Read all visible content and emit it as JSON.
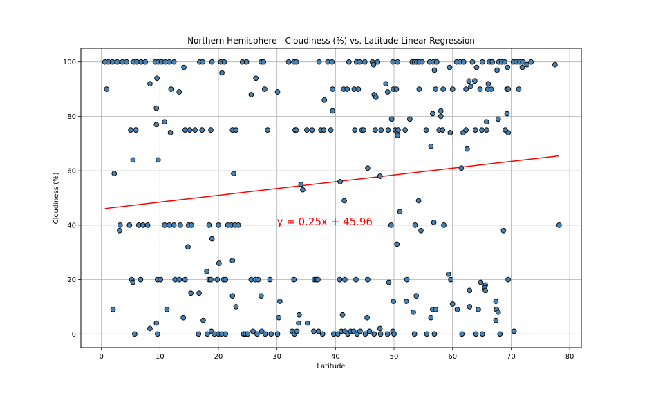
{
  "chart_data": {
    "type": "scatter",
    "title": "Northern Hemisphere - Cloudiness (%) vs. Latitude Linear Regression",
    "xlabel": "Latitude",
    "ylabel": "Cloudiness (%)",
    "xlim": [
      -3.5,
      82
    ],
    "ylim": [
      -5,
      105
    ],
    "xticks": [
      0,
      10,
      20,
      30,
      40,
      50,
      60,
      70,
      80
    ],
    "yticks": [
      0,
      20,
      40,
      60,
      80,
      100
    ],
    "grid": true,
    "marker_color": "#4682b4",
    "marker_edge": "#000000",
    "regression": {
      "slope": 0.25,
      "intercept": 45.96,
      "x_range": [
        0.6,
        78.2
      ],
      "color": "#ff0000",
      "equation": "y = 0.25x + 45.96",
      "label_x": 30,
      "label_y": 40
    },
    "points": [
      [
        0.6,
        100
      ],
      [
        1.2,
        100
      ],
      [
        1.9,
        100
      ],
      [
        2.7,
        100
      ],
      [
        3.6,
        100
      ],
      [
        4.3,
        100
      ],
      [
        5.5,
        100
      ],
      [
        6.1,
        100
      ],
      [
        6.8,
        100
      ],
      [
        7.5,
        100
      ],
      [
        9.2,
        100
      ],
      [
        9.7,
        100
      ],
      [
        10.3,
        100
      ],
      [
        10.9,
        100
      ],
      [
        11.6,
        100
      ],
      [
        12.4,
        100
      ],
      [
        16.8,
        100
      ],
      [
        17.3,
        100
      ],
      [
        18.9,
        100
      ],
      [
        20.4,
        100
      ],
      [
        21.0,
        100
      ],
      [
        24.1,
        100
      ],
      [
        24.8,
        100
      ],
      [
        27.3,
        100
      ],
      [
        27.7,
        100
      ],
      [
        32.0,
        100
      ],
      [
        32.9,
        100
      ],
      [
        33.3,
        100
      ],
      [
        37.2,
        100
      ],
      [
        38.7,
        100
      ],
      [
        39.4,
        100
      ],
      [
        42.3,
        100
      ],
      [
        43.6,
        100
      ],
      [
        44.1,
        100
      ],
      [
        45.0,
        100
      ],
      [
        46.3,
        100
      ],
      [
        47.2,
        100
      ],
      [
        49.8,
        100
      ],
      [
        50.6,
        100
      ],
      [
        53.1,
        100
      ],
      [
        53.5,
        100
      ],
      [
        53.9,
        100
      ],
      [
        54.3,
        100
      ],
      [
        54.8,
        100
      ],
      [
        56.1,
        100
      ],
      [
        56.7,
        100
      ],
      [
        57.3,
        100
      ],
      [
        60.7,
        100
      ],
      [
        61.3,
        100
      ],
      [
        61.9,
        100
      ],
      [
        63.4,
        100
      ],
      [
        65.1,
        100
      ],
      [
        66.3,
        100
      ],
      [
        66.8,
        100
      ],
      [
        67.9,
        100
      ],
      [
        68.4,
        100
      ],
      [
        68.9,
        100
      ],
      [
        70.4,
        100
      ],
      [
        70.9,
        100
      ],
      [
        71.5,
        100
      ],
      [
        72.0,
        100
      ],
      [
        73.4,
        100
      ],
      [
        72.7,
        99
      ],
      [
        77.5,
        99
      ],
      [
        46.5,
        99
      ],
      [
        59.5,
        98
      ],
      [
        64.1,
        98
      ],
      [
        71.9,
        98
      ],
      [
        69.4,
        98
      ],
      [
        14.1,
        98
      ],
      [
        20.6,
        96
      ],
      [
        56.9,
        97
      ],
      [
        67.6,
        97
      ],
      [
        26.4,
        94
      ],
      [
        9.5,
        94
      ],
      [
        62.8,
        93
      ],
      [
        63.8,
        93
      ],
      [
        8.3,
        92
      ],
      [
        48.6,
        92
      ],
      [
        66.1,
        92
      ],
      [
        0.9,
        90
      ],
      [
        11.9,
        90
      ],
      [
        13.3,
        89
      ],
      [
        27.9,
        90
      ],
      [
        30.1,
        89
      ],
      [
        39.5,
        90
      ],
      [
        41.4,
        90
      ],
      [
        42.0,
        90
      ],
      [
        43.2,
        90
      ],
      [
        43.9,
        90
      ],
      [
        49.9,
        90
      ],
      [
        50.4,
        90
      ],
      [
        54.3,
        90
      ],
      [
        57.1,
        90
      ],
      [
        58.4,
        90
      ],
      [
        60.0,
        90
      ],
      [
        62.3,
        90
      ],
      [
        63.1,
        91
      ],
      [
        64.7,
        90
      ],
      [
        66.0,
        90
      ],
      [
        66.6,
        90
      ],
      [
        69.3,
        90
      ],
      [
        69.5,
        90
      ],
      [
        71.3,
        90
      ],
      [
        25.6,
        88
      ],
      [
        46.6,
        88
      ],
      [
        46.9,
        87
      ],
      [
        48.9,
        89
      ],
      [
        38.1,
        86
      ],
      [
        39.5,
        82
      ],
      [
        58.0,
        82
      ],
      [
        58.0,
        80
      ],
      [
        9.4,
        83
      ],
      [
        52.7,
        79
      ],
      [
        56.6,
        81
      ],
      [
        69.3,
        81
      ],
      [
        67.8,
        79
      ],
      [
        65.8,
        78
      ],
      [
        10.8,
        78
      ],
      [
        9.4,
        77
      ],
      [
        5.0,
        75
      ],
      [
        5.9,
        75
      ],
      [
        11.8,
        74
      ],
      [
        14.3,
        75
      ],
      [
        15.1,
        75
      ],
      [
        16.0,
        75
      ],
      [
        17.2,
        75
      ],
      [
        18.7,
        75
      ],
      [
        22.4,
        75
      ],
      [
        23.0,
        75
      ],
      [
        28.4,
        75
      ],
      [
        33.1,
        75
      ],
      [
        33.3,
        75
      ],
      [
        35.1,
        75
      ],
      [
        36.0,
        75
      ],
      [
        37.5,
        75
      ],
      [
        38.0,
        75
      ],
      [
        39.2,
        75
      ],
      [
        43.3,
        75
      ],
      [
        44.5,
        75
      ],
      [
        44.8,
        75
      ],
      [
        46.8,
        75
      ],
      [
        47.8,
        75
      ],
      [
        49.0,
        75
      ],
      [
        49.6,
        79
      ],
      [
        50.2,
        75
      ],
      [
        50.7,
        75
      ],
      [
        51.9,
        75
      ],
      [
        55.5,
        75
      ],
      [
        57.7,
        75
      ],
      [
        58.3,
        75
      ],
      [
        59.6,
        74
      ],
      [
        61.8,
        74
      ],
      [
        62.3,
        75
      ],
      [
        63.9,
        75
      ],
      [
        65.0,
        75
      ],
      [
        65.8,
        75
      ],
      [
        69.0,
        75
      ],
      [
        69.5,
        74
      ],
      [
        50.6,
        73
      ],
      [
        62.5,
        68
      ],
      [
        56.3,
        69
      ],
      [
        5.4,
        64
      ],
      [
        9.7,
        64
      ],
      [
        2.2,
        59
      ],
      [
        22.6,
        59
      ],
      [
        45.5,
        61
      ],
      [
        61.5,
        61
      ],
      [
        47.6,
        58
      ],
      [
        40.8,
        56
      ],
      [
        34.1,
        55
      ],
      [
        34.4,
        53
      ],
      [
        41.5,
        49
      ],
      [
        54.2,
        49
      ],
      [
        51.0,
        45
      ],
      [
        3.2,
        40
      ],
      [
        4.8,
        40
      ],
      [
        6.4,
        40
      ],
      [
        7.1,
        40
      ],
      [
        7.9,
        40
      ],
      [
        10.8,
        40
      ],
      [
        11.6,
        40
      ],
      [
        12.4,
        40
      ],
      [
        13.5,
        40
      ],
      [
        14.9,
        40
      ],
      [
        15.4,
        40
      ],
      [
        18.4,
        40
      ],
      [
        20.0,
        40
      ],
      [
        21.6,
        40
      ],
      [
        22.2,
        40
      ],
      [
        22.8,
        40
      ],
      [
        23.4,
        40
      ],
      [
        49.5,
        40
      ],
      [
        53.6,
        40
      ],
      [
        56.8,
        41
      ],
      [
        58.5,
        40
      ],
      [
        78.2,
        40
      ],
      [
        3.1,
        38
      ],
      [
        54.6,
        38
      ],
      [
        68.7,
        38
      ],
      [
        18.9,
        35
      ],
      [
        50.5,
        33
      ],
      [
        14.8,
        32
      ],
      [
        22.4,
        27
      ],
      [
        20.1,
        26
      ],
      [
        18.0,
        23
      ],
      [
        59.3,
        22
      ],
      [
        5.2,
        20
      ],
      [
        5.4,
        19
      ],
      [
        6.7,
        20
      ],
      [
        9.6,
        20
      ],
      [
        10.1,
        20
      ],
      [
        12.6,
        20
      ],
      [
        13.3,
        20
      ],
      [
        14.3,
        20
      ],
      [
        18.4,
        20
      ],
      [
        18.7,
        20
      ],
      [
        19.8,
        20
      ],
      [
        20.9,
        20
      ],
      [
        21.2,
        20
      ],
      [
        25.6,
        20
      ],
      [
        26.3,
        20
      ],
      [
        26.8,
        20
      ],
      [
        28.8,
        20
      ],
      [
        32.9,
        20
      ],
      [
        36.4,
        20
      ],
      [
        36.7,
        20
      ],
      [
        37.0,
        20
      ],
      [
        40.7,
        20
      ],
      [
        41.6,
        20
      ],
      [
        43.5,
        20
      ],
      [
        45.5,
        20
      ],
      [
        49.1,
        19
      ],
      [
        52.2,
        20
      ],
      [
        59.7,
        20
      ],
      [
        64.8,
        19
      ],
      [
        65.6,
        18
      ],
      [
        65.5,
        17
      ],
      [
        65.6,
        16
      ],
      [
        69.5,
        20
      ],
      [
        15.3,
        15
      ],
      [
        16.7,
        15
      ],
      [
        22.4,
        14
      ],
      [
        27.3,
        14
      ],
      [
        53.8,
        14
      ],
      [
        62.9,
        16
      ],
      [
        30.5,
        12
      ],
      [
        49.9,
        12
      ],
      [
        52.1,
        12
      ],
      [
        60.0,
        11
      ],
      [
        67.4,
        12
      ],
      [
        2.0,
        9
      ],
      [
        11.2,
        9
      ],
      [
        23.0,
        10
      ],
      [
        33.8,
        7
      ],
      [
        41.2,
        7
      ],
      [
        53.3,
        8
      ],
      [
        56.6,
        9
      ],
      [
        57.1,
        9
      ],
      [
        60.8,
        9
      ],
      [
        62.9,
        10
      ],
      [
        64.4,
        9
      ],
      [
        67.5,
        9
      ],
      [
        67.8,
        8
      ],
      [
        14.0,
        6
      ],
      [
        17.4,
        5
      ],
      [
        30.3,
        6
      ],
      [
        45.4,
        6
      ],
      [
        56.3,
        6
      ],
      [
        67.4,
        5
      ],
      [
        5.7,
        0
      ],
      [
        8.3,
        2
      ],
      [
        9.4,
        4
      ],
      [
        9.6,
        0
      ],
      [
        16.6,
        0
      ],
      [
        18.1,
        0
      ],
      [
        18.8,
        1
      ],
      [
        19.3,
        0
      ],
      [
        20.0,
        0
      ],
      [
        20.5,
        0
      ],
      [
        21.2,
        0
      ],
      [
        24.3,
        0
      ],
      [
        24.6,
        0
      ],
      [
        25.0,
        0
      ],
      [
        25.9,
        1
      ],
      [
        26.6,
        0
      ],
      [
        27.4,
        1
      ],
      [
        28.0,
        0
      ],
      [
        29.0,
        0
      ],
      [
        30.1,
        0
      ],
      [
        32.6,
        1
      ],
      [
        33.0,
        0
      ],
      [
        33.4,
        1
      ],
      [
        33.7,
        4
      ],
      [
        35.2,
        4
      ],
      [
        36.3,
        1
      ],
      [
        37.1,
        1
      ],
      [
        37.8,
        0
      ],
      [
        39.7,
        0
      ],
      [
        40.4,
        0
      ],
      [
        41.0,
        1
      ],
      [
        41.6,
        1
      ],
      [
        42.1,
        0
      ],
      [
        42.6,
        1
      ],
      [
        43.1,
        1
      ],
      [
        43.7,
        0
      ],
      [
        44.2,
        1
      ],
      [
        45.1,
        0
      ],
      [
        45.8,
        1
      ],
      [
        46.6,
        0
      ],
      [
        47.6,
        2
      ],
      [
        47.7,
        0
      ],
      [
        48.9,
        0
      ],
      [
        49.8,
        1
      ],
      [
        50.0,
        0
      ],
      [
        53.5,
        0
      ],
      [
        55.6,
        0
      ],
      [
        56.9,
        0
      ],
      [
        61.6,
        0
      ],
      [
        64.0,
        0
      ],
      [
        65.1,
        0
      ],
      [
        70.5,
        1
      ],
      [
        68.1,
        0
      ]
    ]
  }
}
